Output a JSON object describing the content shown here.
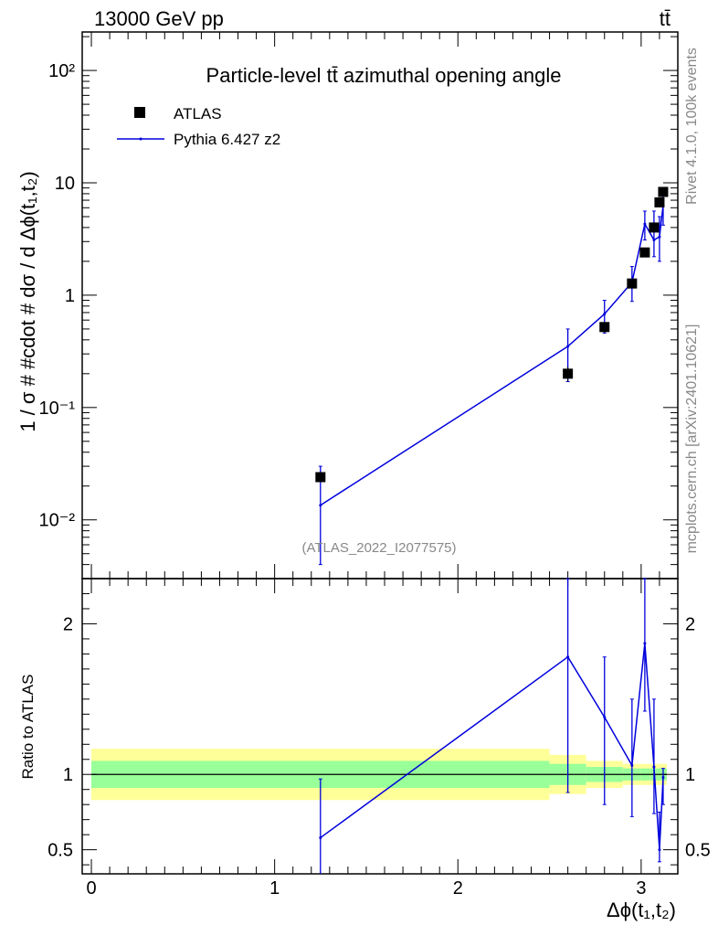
{
  "header": {
    "energy_label": "13000 GeV pp",
    "process_label": "tt̄"
  },
  "chart_data": [
    {
      "type": "scatter",
      "panel": "main",
      "title": "Particle-level tt̄ azimuthal opening angle",
      "ylabel": "1 / σ # #cdot # dσ / d Δϕ(t₁,t₂)",
      "yscale": "log",
      "xlim": [
        -0.05,
        3.2
      ],
      "ylim": [
        0.003,
        220
      ],
      "yticks": [
        0.01,
        0.1,
        1,
        10,
        100
      ],
      "ytick_labels": [
        "10⁻²",
        "10⁻¹",
        "1",
        "10",
        "10²"
      ],
      "annotation": "(ATLAS_2022_I2077575)",
      "legend_position": "top-left",
      "series": [
        {
          "name": "ATLAS",
          "style": "square-markers",
          "color": "#000000",
          "x": [
            1.25,
            2.6,
            2.8,
            2.95,
            3.02,
            3.07,
            3.1,
            3.12
          ],
          "y": [
            0.024,
            0.2,
            0.52,
            1.27,
            2.4,
            4.0,
            6.7,
            8.3
          ],
          "yerr_low": [
            0.024,
            0.17,
            0.46,
            1.22,
            2.35,
            3.95,
            6.6,
            8.2
          ],
          "yerr_high": [
            0.024,
            0.23,
            0.58,
            1.32,
            2.45,
            4.05,
            6.8,
            8.4
          ]
        },
        {
          "name": "Pythia 6.427 z2",
          "style": "line-with-errors",
          "color": "#0000dd",
          "x": [
            1.25,
            2.6,
            2.8,
            2.95,
            3.02,
            3.07,
            3.1,
            3.12
          ],
          "y": [
            0.0135,
            0.35,
            0.68,
            1.3,
            4.3,
            3.1,
            3.3,
            6.3
          ],
          "yerr_low": [
            0.004,
            0.17,
            0.46,
            0.88,
            3.1,
            2.2,
            2.0,
            4.2
          ],
          "yerr_high": [
            0.03,
            0.5,
            0.9,
            1.8,
            5.6,
            5.6,
            5.0,
            8.0
          ]
        }
      ]
    },
    {
      "type": "line",
      "panel": "ratio",
      "ylabel": "Ratio to ATLAS",
      "xlabel": "Δϕ(t₁,t₂)",
      "xlim": [
        -0.05,
        3.2
      ],
      "ylim": [
        0.34,
        2.3
      ],
      "xticks": [
        0,
        1,
        2,
        3
      ],
      "yticks": [
        0.5,
        1,
        2
      ],
      "ytick_labels": [
        "0.5",
        "1",
        "2"
      ],
      "bands": {
        "edges": [
          0,
          2.5,
          2.7,
          2.9,
          3.0,
          3.05,
          3.09,
          3.11,
          3.14
        ],
        "inner_low": [
          0.91,
          0.93,
          0.95,
          0.96,
          0.96,
          0.96,
          0.96,
          0.96
        ],
        "inner_high": [
          1.09,
          1.07,
          1.05,
          1.04,
          1.04,
          1.04,
          1.04,
          1.04
        ],
        "outer_low": [
          0.83,
          0.87,
          0.91,
          0.93,
          0.93,
          0.93,
          0.93,
          0.93
        ],
        "outer_high": [
          1.17,
          1.13,
          1.09,
          1.07,
          1.07,
          1.07,
          1.07,
          1.07
        ],
        "inner_color": "#99ff99",
        "outer_color": "#ffff99"
      },
      "series": [
        {
          "name": "Pythia 6.427 z2",
          "color": "#0000dd",
          "x": [
            1.25,
            2.6,
            2.8,
            2.95,
            3.02,
            3.07,
            3.1,
            3.12
          ],
          "y": [
            0.58,
            1.78,
            1.38,
            1.06,
            1.87,
            1.05,
            0.5,
            0.98
          ],
          "yerr_low": [
            0.2,
            0.88,
            0.8,
            0.72,
            1.42,
            0.74,
            0.42,
            0.8
          ],
          "yerr_high": [
            0.97,
            2.3,
            1.78,
            1.5,
            2.3,
            1.5,
            0.75,
            1.04
          ]
        }
      ]
    }
  ],
  "side_labels": {
    "rivet": "Rivet 4.1.0, 100k events",
    "mcplots": "mcplots.cern.ch [arXiv:2401.10621]"
  }
}
